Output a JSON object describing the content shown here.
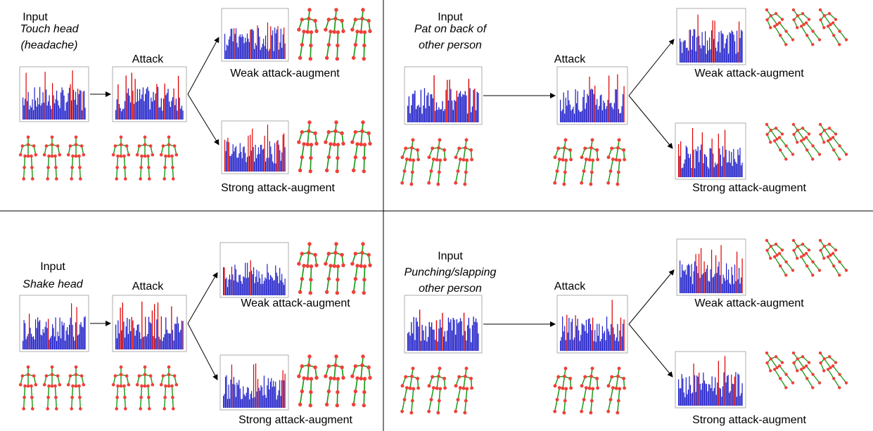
{
  "panels": [
    {
      "input_label": "Input",
      "action": [
        "Touch head",
        "(headache)"
      ],
      "attack_label": "Attack",
      "weak_label": "Weak attack-augment",
      "strong_label": "Strong attack-augment"
    },
    {
      "input_label": "Input",
      "action": [
        "Pat on back of",
        "other person"
      ],
      "attack_label": "Attack",
      "weak_label": "Weak attack-augment",
      "strong_label": "Strong attack-augment"
    },
    {
      "input_label": "Input",
      "action": [
        "Shake head"
      ],
      "attack_label": "Attack",
      "weak_label": "Weak attack-augment",
      "strong_label": "Strong attack-augment"
    },
    {
      "input_label": "Input",
      "action": [
        "Punching/slapping",
        "other person"
      ],
      "attack_label": "Attack",
      "weak_label": "Weak attack-augment",
      "strong_label": "Strong attack-augment"
    }
  ]
}
